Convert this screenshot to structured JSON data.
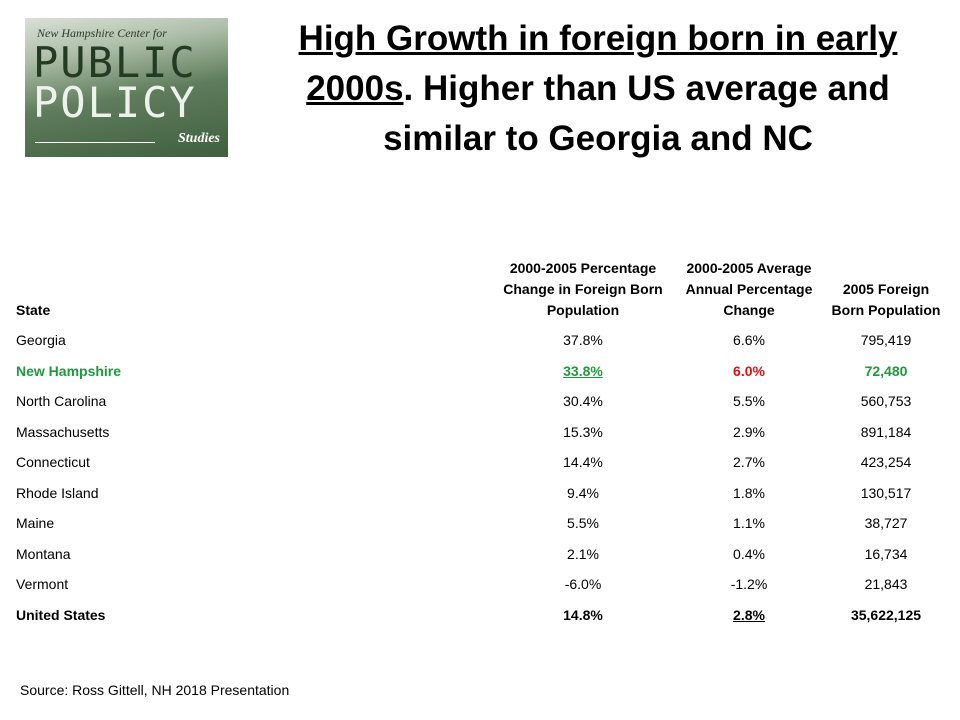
{
  "logo": {
    "line1": "New Hampshire Center for",
    "line2": "PUBLIC",
    "line3": "POLICY",
    "line4": "Studies"
  },
  "title": {
    "underlined": "High Growth in foreign born in early 2000s",
    "rest": ". Higher than US average and similar to Georgia and NC"
  },
  "table": {
    "header": [
      "State",
      "2000-2005 Percentage Change in Foreign Born Population",
      "2000-2005 Average Annual Percentage Change",
      "2005 Foreign Born Population"
    ],
    "rows": [
      [
        "Georgia",
        "37.8%",
        "6.6%",
        "795,419"
      ],
      [
        "New Hampshire",
        "33.8%",
        "6.0%",
        "72,480"
      ],
      [
        "North Carolina",
        "30.4%",
        "5.5%",
        "560,753"
      ],
      [
        "Massachusetts",
        "15.3%",
        "2.9%",
        "891,184"
      ],
      [
        "Connecticut",
        "14.4%",
        "2.7%",
        "423,254"
      ],
      [
        "Rhode Island",
        "9.4%",
        "1.8%",
        "130,517"
      ],
      [
        "Maine",
        "5.5%",
        "1.1%",
        "38,727"
      ],
      [
        "Montana",
        "2.1%",
        "0.4%",
        "16,734"
      ],
      [
        "Vermont",
        "-6.0%",
        "-1.2%",
        "21,843"
      ],
      [
        "United States",
        "14.8%",
        "2.8%",
        "35,622,125"
      ]
    ]
  },
  "source": "Source:  Ross Gittell, NH 2018 Presentation"
}
